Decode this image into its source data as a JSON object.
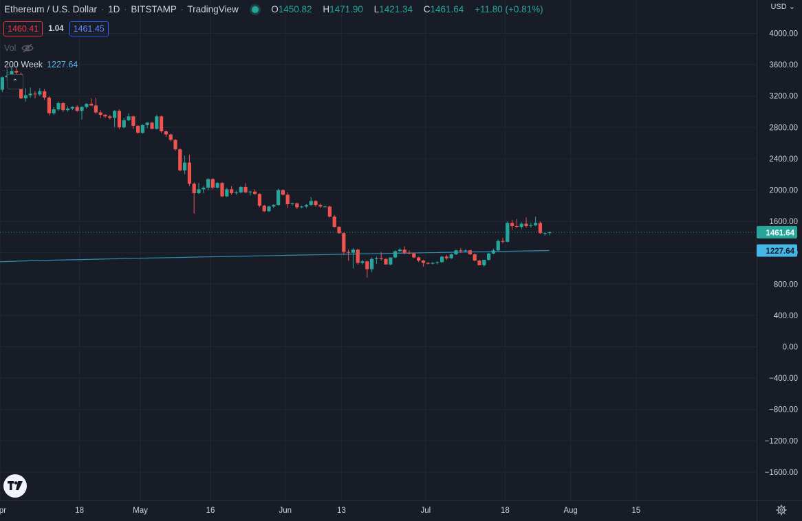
{
  "header": {
    "symbol": "Ethereum / U.S. Dollar",
    "interval": "1D",
    "exchange": "BITSTAMP",
    "source": "TradingView",
    "open_label": "O",
    "open": "1450.82",
    "high_label": "H",
    "high": "1471.90",
    "low_label": "L",
    "low": "1421.34",
    "close_label": "C",
    "close": "1461.64",
    "change": "+11.80 (+0.81%)"
  },
  "quote": {
    "bid": "1460.41",
    "spread": "1.04",
    "ask": "1461.45"
  },
  "volume": {
    "label": "Vol"
  },
  "indicator": {
    "label": "200 Week",
    "value": "1227.64"
  },
  "axis": {
    "currency": "USD"
  },
  "price_tags": {
    "last": "1461.64",
    "ma": "1227.64"
  },
  "colors": {
    "background": "#181c27",
    "up": "#26a69a",
    "down": "#ef5350",
    "ma": "#2f8fb8",
    "grid": "#242836",
    "axis_text": "#d1d4dc"
  },
  "chart_data": {
    "type": "candlestick",
    "title": "Ethereum / U.S. Dollar · 1D · BITSTAMP",
    "y_unit": "USD",
    "ylim": [
      -1800,
      4300
    ],
    "y_ticks": [
      4000,
      3600,
      3200,
      2800,
      2400,
      2000,
      1600,
      1200,
      800,
      400,
      0,
      -400,
      -800,
      -1200,
      -1600
    ],
    "y_tick_labels": [
      "4000.00",
      "3600.00",
      "3200.00",
      "2800.00",
      "2400.00",
      "2000.00",
      "1600.00",
      "1200.00",
      "800.00",
      "400.00",
      "0.00",
      "−400.00",
      "−800.00",
      "−1200.00",
      "−1600.00"
    ],
    "x_ticks": [
      {
        "date": "2022-04-01",
        "label": "Apr"
      },
      {
        "date": "2022-04-18",
        "label": "18"
      },
      {
        "date": "2022-05-01",
        "label": "May"
      },
      {
        "date": "2022-05-16",
        "label": "16"
      },
      {
        "date": "2022-06-01",
        "label": "Jun"
      },
      {
        "date": "2022-06-13",
        "label": "13"
      },
      {
        "date": "2022-07-01",
        "label": "Jul"
      },
      {
        "date": "2022-07-18",
        "label": "18"
      },
      {
        "date": "2022-08-01",
        "label": "Aug"
      },
      {
        "date": "2022-08-15",
        "label": "15"
      }
    ],
    "grid": true,
    "last_close": 1461.64,
    "ma_name": "200 Week",
    "ma_last": 1227.64,
    "ma_start": 1085,
    "candles": [
      [
        "2022-04-01",
        3280,
        3450,
        3250,
        3440
      ],
      [
        "2022-04-02",
        3440,
        3540,
        3400,
        3460
      ],
      [
        "2022-04-03",
        3460,
        3580,
        3430,
        3520
      ],
      [
        "2022-04-04",
        3520,
        3560,
        3410,
        3500
      ],
      [
        "2022-04-05",
        3480,
        3500,
        3160,
        3170
      ],
      [
        "2022-04-06",
        3170,
        3300,
        3130,
        3210
      ],
      [
        "2022-04-07",
        3210,
        3310,
        3180,
        3230
      ],
      [
        "2022-04-08",
        3230,
        3260,
        3170,
        3220
      ],
      [
        "2022-04-09",
        3220,
        3300,
        3200,
        3260
      ],
      [
        "2022-04-10",
        3260,
        3290,
        3150,
        3180
      ],
      [
        "2022-04-11",
        3180,
        3200,
        2950,
        2980
      ],
      [
        "2022-04-12",
        2980,
        3060,
        2960,
        3030
      ],
      [
        "2022-04-13",
        3030,
        3130,
        3010,
        3110
      ],
      [
        "2022-04-14",
        3110,
        3120,
        3000,
        3020
      ],
      [
        "2022-04-15",
        3020,
        3070,
        3000,
        3040
      ],
      [
        "2022-04-16",
        3040,
        3070,
        3020,
        3060
      ],
      [
        "2022-04-17",
        3060,
        3080,
        3000,
        3010
      ],
      [
        "2022-04-18",
        3010,
        3070,
        2900,
        3060
      ],
      [
        "2022-04-19",
        3060,
        3110,
        3040,
        3100
      ],
      [
        "2022-04-20",
        3100,
        3170,
        3070,
        3080
      ],
      [
        "2022-04-21",
        3080,
        3180,
        2970,
        2990
      ],
      [
        "2022-04-22",
        2990,
        3020,
        2920,
        2960
      ],
      [
        "2022-04-23",
        2960,
        2970,
        2920,
        2940
      ],
      [
        "2022-04-24",
        2940,
        2960,
        2900,
        2920
      ],
      [
        "2022-04-25",
        2920,
        3020,
        2800,
        3010
      ],
      [
        "2022-04-26",
        3010,
        3030,
        2780,
        2800
      ],
      [
        "2022-04-27",
        2800,
        2920,
        2790,
        2890
      ],
      [
        "2022-04-28",
        2890,
        2980,
        2880,
        2940
      ],
      [
        "2022-04-29",
        2940,
        2950,
        2780,
        2820
      ],
      [
        "2022-04-30",
        2820,
        2830,
        2720,
        2730
      ],
      [
        "2022-05-01",
        2730,
        2840,
        2720,
        2830
      ],
      [
        "2022-05-02",
        2830,
        2870,
        2790,
        2860
      ],
      [
        "2022-05-03",
        2860,
        2870,
        2780,
        2780
      ],
      [
        "2022-05-04",
        2780,
        2960,
        2770,
        2940
      ],
      [
        "2022-05-05",
        2940,
        2950,
        2730,
        2750
      ],
      [
        "2022-05-06",
        2750,
        2760,
        2680,
        2710
      ],
      [
        "2022-05-07",
        2710,
        2720,
        2620,
        2640
      ],
      [
        "2022-05-08",
        2640,
        2650,
        2500,
        2520
      ],
      [
        "2022-05-09",
        2520,
        2530,
        2240,
        2250
      ],
      [
        "2022-05-10",
        2250,
        2440,
        2200,
        2350
      ],
      [
        "2022-05-11",
        2350,
        2450,
        2050,
        2080
      ],
      [
        "2022-05-12",
        2080,
        2100,
        1700,
        1960
      ],
      [
        "2022-05-13",
        1960,
        2090,
        1950,
        2010
      ],
      [
        "2022-05-14",
        2010,
        2050,
        1960,
        2030
      ],
      [
        "2022-05-15",
        2030,
        2150,
        2000,
        2140
      ],
      [
        "2022-05-16",
        2140,
        2150,
        2010,
        2030
      ],
      [
        "2022-05-17",
        2030,
        2100,
        2020,
        2090
      ],
      [
        "2022-05-18",
        2090,
        2100,
        1910,
        1920
      ],
      [
        "2022-05-19",
        1920,
        2030,
        1910,
        2010
      ],
      [
        "2022-05-20",
        2010,
        2050,
        1940,
        1960
      ],
      [
        "2022-05-21",
        1960,
        1990,
        1940,
        1970
      ],
      [
        "2022-05-22",
        1970,
        2050,
        1960,
        2040
      ],
      [
        "2022-05-23",
        2040,
        2090,
        1960,
        1970
      ],
      [
        "2022-05-24",
        1970,
        1990,
        1930,
        1980
      ],
      [
        "2022-05-25",
        1980,
        2010,
        1940,
        1950
      ],
      [
        "2022-05-26",
        1950,
        1960,
        1780,
        1800
      ],
      [
        "2022-05-27",
        1800,
        1810,
        1720,
        1730
      ],
      [
        "2022-05-28",
        1730,
        1800,
        1720,
        1790
      ],
      [
        "2022-05-29",
        1790,
        1820,
        1770,
        1810
      ],
      [
        "2022-05-30",
        1810,
        2020,
        1800,
        2000
      ],
      [
        "2022-05-31",
        2000,
        2010,
        1930,
        1940
      ],
      [
        "2022-06-01",
        1940,
        1970,
        1770,
        1820
      ],
      [
        "2022-06-02",
        1820,
        1840,
        1800,
        1830
      ],
      [
        "2022-06-03",
        1830,
        1840,
        1760,
        1780
      ],
      [
        "2022-06-04",
        1780,
        1800,
        1770,
        1790
      ],
      [
        "2022-06-05",
        1790,
        1820,
        1770,
        1810
      ],
      [
        "2022-06-06",
        1810,
        1910,
        1800,
        1860
      ],
      [
        "2022-06-07",
        1860,
        1870,
        1790,
        1810
      ],
      [
        "2022-06-08",
        1810,
        1830,
        1770,
        1790
      ],
      [
        "2022-06-09",
        1790,
        1800,
        1780,
        1790
      ],
      [
        "2022-06-10",
        1790,
        1800,
        1650,
        1660
      ],
      [
        "2022-06-11",
        1660,
        1680,
        1520,
        1530
      ],
      [
        "2022-06-12",
        1530,
        1540,
        1440,
        1450
      ],
      [
        "2022-06-13",
        1450,
        1460,
        1170,
        1210
      ],
      [
        "2022-06-14",
        1210,
        1240,
        1100,
        1200
      ],
      [
        "2022-06-15",
        1200,
        1260,
        1000,
        1240
      ],
      [
        "2022-06-16",
        1240,
        1250,
        1050,
        1070
      ],
      [
        "2022-06-17",
        1070,
        1110,
        1050,
        1090
      ],
      [
        "2022-06-18",
        1090,
        1100,
        880,
        990
      ],
      [
        "2022-06-19",
        990,
        1140,
        950,
        1120
      ],
      [
        "2022-06-20",
        1120,
        1150,
        1060,
        1130
      ],
      [
        "2022-06-21",
        1130,
        1210,
        1100,
        1120
      ],
      [
        "2022-06-22",
        1120,
        1130,
        1060,
        1050
      ],
      [
        "2022-06-23",
        1050,
        1140,
        1040,
        1140
      ],
      [
        "2022-06-24",
        1140,
        1230,
        1130,
        1220
      ],
      [
        "2022-06-25",
        1220,
        1260,
        1210,
        1240
      ],
      [
        "2022-06-26",
        1240,
        1280,
        1180,
        1200
      ],
      [
        "2022-06-27",
        1200,
        1230,
        1180,
        1190
      ],
      [
        "2022-06-28",
        1190,
        1200,
        1130,
        1140
      ],
      [
        "2022-06-29",
        1140,
        1150,
        1080,
        1100
      ],
      [
        "2022-06-30",
        1100,
        1110,
        1020,
        1070
      ],
      [
        "2022-07-01",
        1070,
        1080,
        1050,
        1060
      ],
      [
        "2022-07-02",
        1060,
        1080,
        1050,
        1070
      ],
      [
        "2022-07-03",
        1070,
        1090,
        1050,
        1080
      ],
      [
        "2022-07-04",
        1080,
        1160,
        1070,
        1150
      ],
      [
        "2022-07-05",
        1150,
        1170,
        1110,
        1130
      ],
      [
        "2022-07-06",
        1130,
        1190,
        1120,
        1180
      ],
      [
        "2022-07-07",
        1180,
        1240,
        1170,
        1230
      ],
      [
        "2022-07-08",
        1230,
        1260,
        1200,
        1220
      ],
      [
        "2022-07-09",
        1220,
        1240,
        1210,
        1230
      ],
      [
        "2022-07-10",
        1230,
        1240,
        1170,
        1180
      ],
      [
        "2022-07-11",
        1180,
        1190,
        1090,
        1100
      ],
      [
        "2022-07-12",
        1100,
        1110,
        1040,
        1040
      ],
      [
        "2022-07-13",
        1040,
        1110,
        1020,
        1110
      ],
      [
        "2022-07-14",
        1110,
        1200,
        1100,
        1190
      ],
      [
        "2022-07-15",
        1190,
        1250,
        1180,
        1230
      ],
      [
        "2022-07-16",
        1230,
        1370,
        1220,
        1350
      ],
      [
        "2022-07-17",
        1350,
        1390,
        1320,
        1340
      ],
      [
        "2022-07-18",
        1340,
        1600,
        1330,
        1580
      ],
      [
        "2022-07-19",
        1580,
        1620,
        1490,
        1540
      ],
      [
        "2022-07-20",
        1540,
        1630,
        1520,
        1530
      ],
      [
        "2022-07-21",
        1530,
        1590,
        1500,
        1570
      ],
      [
        "2022-07-22",
        1570,
        1650,
        1520,
        1540
      ],
      [
        "2022-07-23",
        1540,
        1580,
        1520,
        1550
      ],
      [
        "2022-07-24",
        1550,
        1660,
        1540,
        1580
      ],
      [
        "2022-07-25",
        1580,
        1600,
        1440,
        1450
      ],
      [
        "2022-07-26",
        1450,
        1460,
        1420,
        1450
      ],
      [
        "2022-07-27",
        1450.82,
        1471.9,
        1421.34,
        1461.64
      ]
    ]
  }
}
